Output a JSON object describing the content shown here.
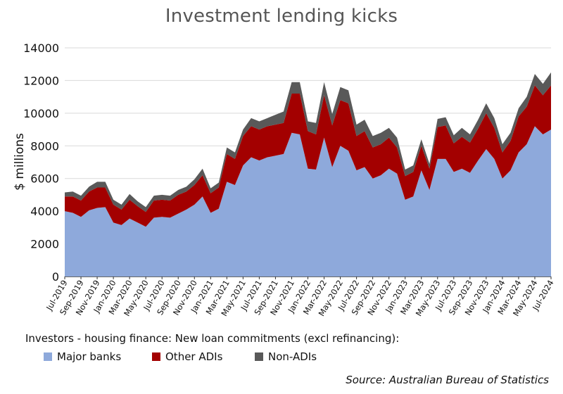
{
  "chart_data": {
    "type": "area",
    "stacked": true,
    "title": "Investment lending kicks",
    "ylabel": "$ millions",
    "xlabel": "",
    "ylim": [
      0,
      14000
    ],
    "yticks": [
      0,
      2000,
      4000,
      6000,
      8000,
      10000,
      12000,
      14000
    ],
    "grid": "horizontal",
    "categories": [
      "Jul-2019",
      "Aug-2019",
      "Sep-2019",
      "Oct-2019",
      "Nov-2019",
      "Dec-2019",
      "Jan-2020",
      "Feb-2020",
      "Mar-2020",
      "Apr-2020",
      "May-2020",
      "Jun-2020",
      "Jul-2020",
      "Aug-2020",
      "Sep-2020",
      "Oct-2020",
      "Nov-2020",
      "Dec-2020",
      "Jan-2021",
      "Feb-2021",
      "Mar-2021",
      "Apr-2021",
      "May-2021",
      "Jun-2021",
      "Jul-2021",
      "Aug-2021",
      "Sep-2021",
      "Oct-2021",
      "Nov-2021",
      "Dec-2021",
      "Jan-2022",
      "Feb-2022",
      "Mar-2022",
      "Apr-2022",
      "May-2022",
      "Jun-2022",
      "Jul-2022",
      "Aug-2022",
      "Sep-2022",
      "Oct-2022",
      "Nov-2022",
      "Dec-2022",
      "Jan-2023",
      "Feb-2023",
      "Mar-2023",
      "Apr-2023",
      "May-2023",
      "Jun-2023",
      "Jul-2023",
      "Aug-2023",
      "Sep-2023",
      "Oct-2023",
      "Nov-2023",
      "Dec-2023",
      "Jan-2024",
      "Feb-2024",
      "Mar-2024",
      "Apr-2024",
      "May-2024",
      "Jun-2024",
      "Jul-2024"
    ],
    "tick_labels": [
      "Jul-2019",
      "Sep-2019",
      "Nov-2019",
      "Jan-2020",
      "Mar-2020",
      "May-2020",
      "Jul-2020",
      "Sep-2020",
      "Nov-2020",
      "Jan-2021",
      "Mar-2021",
      "May-2021",
      "Jul-2021",
      "Sep-2021",
      "Nov-2021",
      "Jan-2022",
      "Mar-2022",
      "May-2022",
      "Jul-2022",
      "Sep-2022",
      "Nov-2022",
      "Jan-2023",
      "Mar-2023",
      "May-2023",
      "Jul-2023",
      "Sep-2023",
      "Nov-2023",
      "Jan-2024",
      "Mar-2024",
      "May-2024",
      "Jul-2024"
    ],
    "series": [
      {
        "name": "Major banks",
        "color": "#8EA9DB",
        "values": [
          4000,
          3900,
          3650,
          4050,
          4200,
          4250,
          3300,
          3150,
          3550,
          3300,
          3050,
          3600,
          3650,
          3600,
          3850,
          4100,
          4400,
          4900,
          3900,
          4150,
          5800,
          5600,
          6800,
          7300,
          7100,
          7300,
          7400,
          7500,
          8800,
          8700,
          6600,
          6550,
          8500,
          6700,
          8000,
          7700,
          6500,
          6700,
          6000,
          6200,
          6600,
          6300,
          4700,
          4900,
          6500,
          5300,
          7200,
          7200,
          6400,
          6600,
          6350,
          7100,
          7800,
          7200,
          6000,
          6500,
          7600,
          8100,
          9200,
          8700,
          9000
        ]
      },
      {
        "name": "Other ADIs",
        "color": "#A30000",
        "values": [
          900,
          1000,
          1000,
          1150,
          1250,
          1200,
          1100,
          950,
          1150,
          1000,
          900,
          1050,
          1050,
          1050,
          1150,
          1100,
          1200,
          1300,
          1200,
          1300,
          1700,
          1600,
          1800,
          1900,
          1900,
          1900,
          1900,
          1900,
          2400,
          2500,
          2300,
          2150,
          2600,
          2550,
          2800,
          2900,
          2100,
          2200,
          1900,
          1900,
          1900,
          1600,
          1450,
          1500,
          1500,
          1300,
          1950,
          2050,
          1750,
          1950,
          1850,
          1950,
          2200,
          1900,
          1600,
          1800,
          2200,
          2300,
          2500,
          2400,
          2700
        ]
      },
      {
        "name": "Non-ADIs",
        "color": "#595959",
        "values": [
          250,
          300,
          300,
          300,
          350,
          350,
          300,
          300,
          350,
          300,
          300,
          300,
          300,
          300,
          300,
          300,
          350,
          400,
          300,
          300,
          400,
          400,
          400,
          500,
          500,
          500,
          600,
          700,
          700,
          700,
          600,
          700,
          800,
          700,
          800,
          800,
          700,
          700,
          700,
          700,
          600,
          600,
          400,
          400,
          400,
          300,
          500,
          500,
          500,
          550,
          500,
          550,
          600,
          600,
          500,
          500,
          500,
          600,
          700,
          700,
          800
        ]
      }
    ]
  },
  "legend": {
    "title": "Investors - housing finance: New loan commitments (excl refinancing):",
    "items": [
      {
        "label": "Major banks",
        "color": "#8EA9DB"
      },
      {
        "label": "Other ADIs",
        "color": "#A30000"
      },
      {
        "label": "Non-ADIs",
        "color": "#595959"
      }
    ]
  },
  "source": "Source: Australian Bureau of Statistics"
}
